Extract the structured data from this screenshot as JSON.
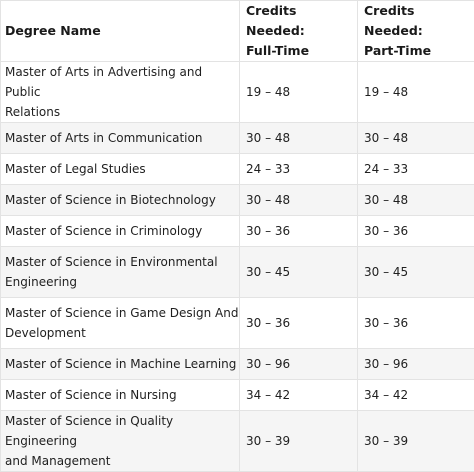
{
  "headers": {
    "degree": "Degree Name",
    "full_time": [
      "Credits Needed:",
      "Full-Time"
    ],
    "part_time": [
      "Credits Needed:",
      "Part-Time"
    ]
  },
  "rows": [
    {
      "degree": [
        "Master of Arts in Advertising and Public",
        "Relations"
      ],
      "full": "19 – 48",
      "part": "19 – 48"
    },
    {
      "degree": [
        "Master of Arts in Communication"
      ],
      "full": "30 – 48",
      "part": "30 – 48"
    },
    {
      "degree": [
        "Master of Legal Studies"
      ],
      "full": "24 – 33",
      "part": "24 – 33"
    },
    {
      "degree": [
        "Master of Science in Biotechnology"
      ],
      "full": "30 – 48",
      "part": "30 – 48"
    },
    {
      "degree": [
        "Master of Science in Criminology"
      ],
      "full": "30 – 36",
      "part": "30 – 36"
    },
    {
      "degree": [
        "Master of Science in Environmental",
        "Engineering"
      ],
      "full": "30 – 45",
      "part": "30 – 45"
    },
    {
      "degree": [
        "Master of Science in Game Design And",
        "Development"
      ],
      "full": "30 – 36",
      "part": "30 – 36"
    },
    {
      "degree": [
        "Master of Science in Machine Learning"
      ],
      "full": "30 – 96",
      "part": "30 – 96"
    },
    {
      "degree": [
        "Master of Science in Nursing"
      ],
      "full": "34 – 42",
      "part": "34 – 42"
    },
    {
      "degree": [
        "Master of Science in Quality Engineering",
        "and Management"
      ],
      "full": "30 – 39",
      "part": "30 – 39"
    }
  ]
}
